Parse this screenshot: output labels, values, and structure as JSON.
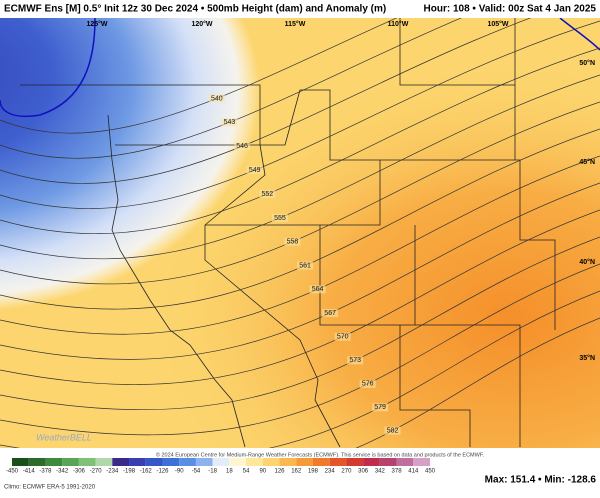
{
  "header": {
    "title": "ECMWF Ens [M] 0.5° Init 12z 30 Dec 2024 • 500mb Height (dam) and Anomaly (m)",
    "valid": "Hour: 108 • Valid: 00z Sat 4 Jan 2025"
  },
  "map": {
    "lon_labels": [
      "125°W",
      "120°W",
      "115°W",
      "110°W",
      "105°W"
    ],
    "lat_labels": [
      "50°N",
      "45°N",
      "40°N",
      "35°N"
    ],
    "contour_labels": [
      "540",
      "543",
      "546",
      "549",
      "552",
      "555",
      "558",
      "561",
      "564",
      "567",
      "570",
      "573",
      "576",
      "579",
      "582"
    ]
  },
  "colorbar": {
    "ticks": [
      -450,
      -414,
      -378,
      -342,
      -306,
      -270,
      -234,
      -198,
      -162,
      -126,
      -90,
      -54,
      -18,
      18,
      54,
      90,
      126,
      162,
      198,
      234,
      270,
      306,
      342,
      378,
      414,
      450
    ]
  },
  "footer": {
    "climo": "Climo: ECMWF ERA-5 1991-2020",
    "copyright": "© 2024 European Centre for Medium-Range Weather Forecasts (ECMWF). This service is based on data and products of the ECMWF.",
    "stats": "Max: 151.4 • Min: -128.6",
    "logo": "WeatherBELL"
  }
}
